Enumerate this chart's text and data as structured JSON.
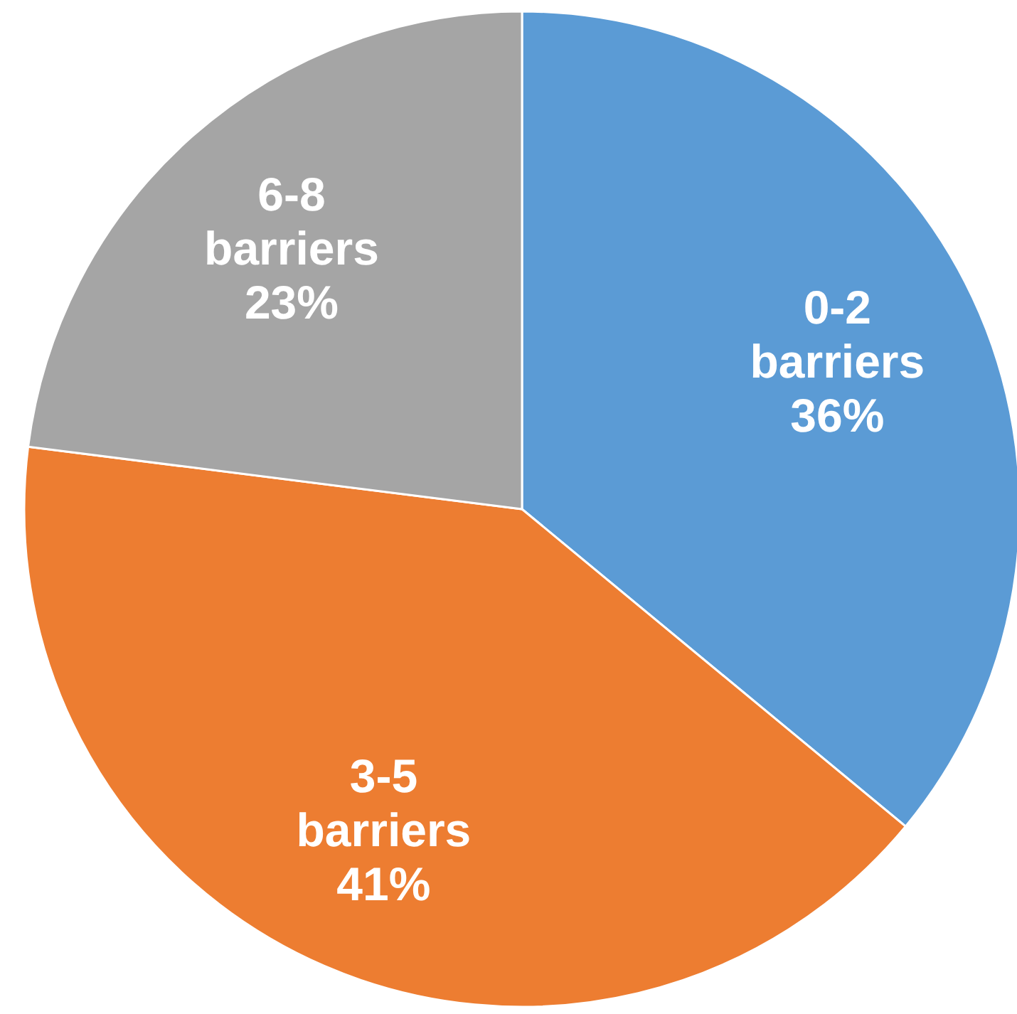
{
  "chart_data": {
    "type": "pie",
    "categories": [
      "0-2 barriers",
      "3-5 barriers",
      "6-8 barriers"
    ],
    "values": [
      36,
      41,
      23
    ],
    "colors": [
      "#5b9bd5",
      "#ed7d31",
      "#a5a5a5"
    ],
    "value_labels": [
      "36%",
      "41%",
      "23%"
    ]
  }
}
